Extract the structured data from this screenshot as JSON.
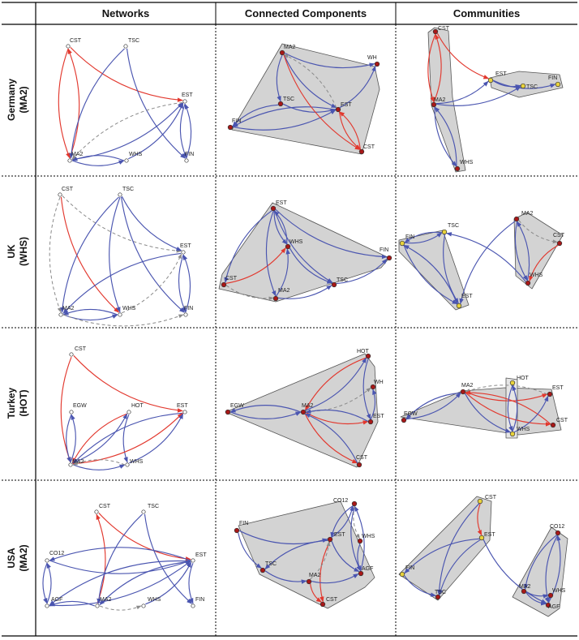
{
  "columns": {
    "networks": "Networks",
    "connected": "Connected Components",
    "communities": "Communities"
  },
  "rows": [
    {
      "country": "Germany",
      "focus": "(MA2)"
    },
    {
      "country": "UK",
      "focus": "(WHS)"
    },
    {
      "country": "Turkey",
      "focus": "(HOT)"
    },
    {
      "country": "USA",
      "focus": "(MA2)"
    }
  ],
  "colors": {
    "edge_blue": "#4a55b0",
    "edge_red": "#e2382e",
    "edge_dashed": "#8a8a8a",
    "hull_fill": "#d3d3d3",
    "node_red": "#a81818",
    "node_yellow": "#e8d23c"
  },
  "graphs": {
    "g_net": {
      "nodes": [
        [
          "CST",
          "CST"
        ],
        [
          "TSC",
          "TSC"
        ],
        [
          "EST",
          "EST"
        ],
        [
          "MA2",
          "MA2"
        ],
        [
          "WHS",
          "WHS"
        ],
        [
          "FIN",
          "FIN"
        ]
      ],
      "edges": [
        [
          "CST",
          "MA2",
          "r"
        ],
        [
          "MA2",
          "CST",
          "r"
        ],
        [
          "CST",
          "EST",
          "r"
        ],
        [
          "TSC",
          "MA2",
          "b"
        ],
        [
          "TSC",
          "FIN",
          "b"
        ],
        [
          "MA2",
          "EST",
          "b"
        ],
        [
          "EST",
          "MA2",
          "d"
        ],
        [
          "MA2",
          "WHS",
          "b"
        ],
        [
          "WHS",
          "MA2",
          "b"
        ],
        [
          "WHS",
          "EST",
          "b"
        ],
        [
          "EST",
          "FIN",
          "b"
        ],
        [
          "FIN",
          "EST",
          "b"
        ]
      ]
    },
    "g_cc": {
      "nodes": [
        [
          "MA2",
          "MA2"
        ],
        [
          "WH",
          "WH"
        ],
        [
          "TSC",
          "TSC"
        ],
        [
          "EST",
          "EST"
        ],
        [
          "FIN",
          "FIN"
        ],
        [
          "CST",
          "CST"
        ]
      ],
      "edges": [
        [
          "MA2",
          "WH",
          "b"
        ],
        [
          "EST",
          "WH",
          "b"
        ],
        [
          "MA2",
          "TSC",
          "b"
        ],
        [
          "MA2",
          "EST",
          "b"
        ],
        [
          "TSC",
          "EST",
          "b"
        ],
        [
          "EST",
          "FIN",
          "b"
        ],
        [
          "FIN",
          "EST",
          "b"
        ],
        [
          "TSC",
          "FIN",
          "b"
        ],
        [
          "MA2",
          "CST",
          "r"
        ],
        [
          "EST",
          "CST",
          "r"
        ],
        [
          "CST",
          "EST",
          "r"
        ],
        [
          "EST",
          "MA2",
          "d"
        ]
      ]
    },
    "g_com": {
      "nodes": [
        [
          "CST",
          "CST"
        ],
        [
          "EST",
          "EST"
        ],
        [
          "FIN",
          "FIN"
        ],
        [
          "TSC",
          "TSC"
        ],
        [
          "MA2",
          "MA2"
        ],
        [
          "WHS",
          "WHS"
        ]
      ],
      "edges": [
        [
          "CST",
          "MA2",
          "r"
        ],
        [
          "MA2",
          "CST",
          "r"
        ],
        [
          "MA2",
          "WHS",
          "b"
        ],
        [
          "WHS",
          "MA2",
          "b"
        ],
        [
          "MA2",
          "EST",
          "b"
        ],
        [
          "MA2",
          "TSC",
          "b"
        ],
        [
          "EST",
          "TSC",
          "b"
        ],
        [
          "EST",
          "FIN",
          "b"
        ],
        [
          "CST",
          "EST",
          "r"
        ]
      ]
    },
    "u_net": {
      "nodes": [
        [
          "CST",
          "CST"
        ],
        [
          "TSC",
          "TSC"
        ],
        [
          "EST",
          "EST"
        ],
        [
          "MA2",
          "MA2"
        ],
        [
          "WHS",
          "WHS"
        ],
        [
          "FIN",
          "FIN"
        ]
      ],
      "edges": [
        [
          "CST",
          "MA2",
          "d"
        ],
        [
          "CST",
          "WHS",
          "r"
        ],
        [
          "CST",
          "EST",
          "d"
        ],
        [
          "TSC",
          "MA2",
          "b"
        ],
        [
          "TSC",
          "WHS",
          "b"
        ],
        [
          "TSC",
          "EST",
          "b"
        ],
        [
          "TSC",
          "FIN",
          "b"
        ],
        [
          "EST",
          "MA2",
          "b"
        ],
        [
          "MA2",
          "WHS",
          "b"
        ],
        [
          "WHS",
          "MA2",
          "b"
        ],
        [
          "WHS",
          "EST",
          "d"
        ],
        [
          "EST",
          "FIN",
          "b"
        ],
        [
          "FIN",
          "EST",
          "b"
        ],
        [
          "MA2",
          "FIN",
          "d"
        ]
      ]
    },
    "u_cc": {
      "nodes": [
        [
          "EST",
          "EST"
        ],
        [
          "WHS",
          "WHS"
        ],
        [
          "FIN",
          "FIN"
        ],
        [
          "CST",
          "CST"
        ],
        [
          "MA2",
          "MA2"
        ],
        [
          "TSC",
          "TSC"
        ]
      ],
      "edges": [
        [
          "EST",
          "FIN",
          "b"
        ],
        [
          "EST",
          "WHS",
          "b"
        ],
        [
          "WHS",
          "EST",
          "b"
        ],
        [
          "EST",
          "TSC",
          "b"
        ],
        [
          "EST",
          "CST",
          "b"
        ],
        [
          "CST",
          "WHS",
          "r"
        ],
        [
          "MA2",
          "WHS",
          "b"
        ],
        [
          "WHS",
          "TSC",
          "b"
        ],
        [
          "TSC",
          "FIN",
          "b"
        ],
        [
          "MA2",
          "TSC",
          "b"
        ],
        [
          "CST",
          "MA2",
          "d"
        ],
        [
          "EST",
          "MA2",
          "b"
        ]
      ]
    },
    "u_com": {
      "nodes": [
        [
          "FIN",
          "FIN"
        ],
        [
          "TSC",
          "TSC"
        ],
        [
          "EST",
          "EST"
        ],
        [
          "MA2",
          "MA2"
        ],
        [
          "CST",
          "CST"
        ],
        [
          "WHS",
          "WHS"
        ]
      ],
      "edges": [
        [
          "FIN",
          "TSC",
          "b"
        ],
        [
          "TSC",
          "FIN",
          "b"
        ],
        [
          "FIN",
          "EST",
          "b"
        ],
        [
          "EST",
          "FIN",
          "b"
        ],
        [
          "TSC",
          "EST",
          "b"
        ],
        [
          "MA2",
          "WHS",
          "b"
        ],
        [
          "WHS",
          "MA2",
          "b"
        ],
        [
          "MA2",
          "CST",
          "d"
        ],
        [
          "CST",
          "WHS",
          "r"
        ],
        [
          "MA2",
          "EST",
          "b"
        ],
        [
          "WHS",
          "TSC",
          "b"
        ]
      ]
    },
    "t_net": {
      "nodes": [
        [
          "CST",
          "CST"
        ],
        [
          "EGW",
          "EGW"
        ],
        [
          "HOT",
          "HOT"
        ],
        [
          "EST",
          "EST"
        ],
        [
          "MA2",
          "MA2"
        ],
        [
          "WHS",
          "WHS"
        ]
      ],
      "edges": [
        [
          "CST",
          "MA2",
          "r"
        ],
        [
          "CST",
          "EST",
          "r"
        ],
        [
          "MA2",
          "EGW",
          "b"
        ],
        [
          "EGW",
          "MA2",
          "b"
        ],
        [
          "HOT",
          "MA2",
          "r"
        ],
        [
          "HOT",
          "WHS",
          "b"
        ],
        [
          "MA2",
          "HOT",
          "b"
        ],
        [
          "EST",
          "MA2",
          "b"
        ],
        [
          "MA2",
          "EST",
          "r"
        ],
        [
          "WHS",
          "EST",
          "b"
        ],
        [
          "MA2",
          "WHS",
          "b"
        ],
        [
          "WHS",
          "MA2",
          "d"
        ]
      ]
    },
    "t_cc": {
      "nodes": [
        [
          "HOT",
          "HOT"
        ],
        [
          "WH",
          "WH"
        ],
        [
          "EGW",
          "EGW"
        ],
        [
          "MA2",
          "MA2"
        ],
        [
          "EST",
          "EST"
        ],
        [
          "CST",
          "CST"
        ]
      ],
      "edges": [
        [
          "MA2",
          "EGW",
          "b"
        ],
        [
          "EGW",
          "MA2",
          "b"
        ],
        [
          "HOT",
          "MA2",
          "r"
        ],
        [
          "MA2",
          "HOT",
          "b"
        ],
        [
          "MA2",
          "WH",
          "d"
        ],
        [
          "EST",
          "WH",
          "b"
        ],
        [
          "MA2",
          "EST",
          "r"
        ],
        [
          "EST",
          "MA2",
          "b"
        ],
        [
          "MA2",
          "CST",
          "r"
        ],
        [
          "CST",
          "MA2",
          "b"
        ],
        [
          "HOT",
          "EST",
          "b"
        ]
      ]
    },
    "t_com": {
      "nodes": [
        [
          "MA2",
          "MA2"
        ],
        [
          "HOT",
          "HOT"
        ],
        [
          "EST",
          "EST"
        ],
        [
          "EGW",
          "EGW"
        ],
        [
          "WHS",
          "WHS"
        ],
        [
          "CST",
          "CST"
        ]
      ],
      "edges": [
        [
          "MA2",
          "EGW",
          "b"
        ],
        [
          "EGW",
          "MA2",
          "b"
        ],
        [
          "MA2",
          "EST",
          "r"
        ],
        [
          "EST",
          "MA2",
          "d"
        ],
        [
          "MA2",
          "CST",
          "r"
        ],
        [
          "CST",
          "MA2",
          "r"
        ],
        [
          "HOT",
          "WHS",
          "b"
        ],
        [
          "WHS",
          "HOT",
          "b"
        ],
        [
          "MA2",
          "WHS",
          "b"
        ],
        [
          "WHS",
          "EST",
          "b"
        ]
      ]
    },
    "s_net": {
      "nodes": [
        [
          "CST",
          "CST"
        ],
        [
          "TSC",
          "TSC"
        ],
        [
          "CO12",
          "CO12"
        ],
        [
          "EST",
          "EST"
        ],
        [
          "AGF",
          "AGF"
        ],
        [
          "MA2",
          "MA2"
        ],
        [
          "WHS",
          "WHS"
        ],
        [
          "FIN",
          "FIN"
        ]
      ],
      "edges": [
        [
          "MA2",
          "CST",
          "r"
        ],
        [
          "CST",
          "EST",
          "r"
        ],
        [
          "TSC",
          "MA2",
          "b"
        ],
        [
          "TSC",
          "FIN",
          "b"
        ],
        [
          "CO12",
          "EST",
          "b"
        ],
        [
          "EST",
          "AGF",
          "b"
        ],
        [
          "EST",
          "MA2",
          "b"
        ],
        [
          "EST",
          "CO12",
          "b"
        ],
        [
          "MA2",
          "AGF",
          "b"
        ],
        [
          "AGF",
          "CO12",
          "b"
        ],
        [
          "CO12",
          "AGF",
          "b"
        ],
        [
          "WHS",
          "EST",
          "b"
        ],
        [
          "MA2",
          "WHS",
          "d"
        ],
        [
          "EST",
          "FIN",
          "b"
        ],
        [
          "AGF",
          "EST",
          "b"
        ]
      ]
    },
    "s_cc": {
      "nodes": [
        [
          "CO12",
          "CO12"
        ],
        [
          "FIN",
          "FIN"
        ],
        [
          "EST",
          "EST"
        ],
        [
          "WHS",
          "WHS"
        ],
        [
          "TSC",
          "TSC"
        ],
        [
          "MA2",
          "MA2"
        ],
        [
          "AGF",
          "AGF"
        ],
        [
          "CST",
          "CST"
        ]
      ],
      "edges": [
        [
          "FIN",
          "EST",
          "b"
        ],
        [
          "EST",
          "TSC",
          "b"
        ],
        [
          "FIN",
          "TSC",
          "b"
        ],
        [
          "CO12",
          "EST",
          "b"
        ],
        [
          "EST",
          "CO12",
          "b"
        ],
        [
          "CO12",
          "AGF",
          "b"
        ],
        [
          "AGF",
          "CO12",
          "b"
        ],
        [
          "EST",
          "AGF",
          "b"
        ],
        [
          "WHS",
          "AGF",
          "b"
        ],
        [
          "MA2",
          "CST",
          "r"
        ],
        [
          "EST",
          "CST",
          "r"
        ],
        [
          "TSC",
          "MA2",
          "b"
        ],
        [
          "MA2",
          "AGF",
          "b"
        ],
        [
          "CO12",
          "WHS",
          "d"
        ],
        [
          "MA2",
          "EST",
          "d"
        ]
      ]
    },
    "s_com": {
      "nodes": [
        [
          "CST",
          "CST"
        ],
        [
          "EST",
          "EST"
        ],
        [
          "FIN",
          "FIN"
        ],
        [
          "TSC",
          "TSC"
        ],
        [
          "CO12",
          "CO12"
        ],
        [
          "MA2",
          "MA2"
        ],
        [
          "WHS",
          "WHS"
        ],
        [
          "AGF",
          "AGF"
        ]
      ],
      "edges": [
        [
          "CST",
          "EST",
          "r"
        ],
        [
          "EST",
          "FIN",
          "b"
        ],
        [
          "EST",
          "TSC",
          "b"
        ],
        [
          "FIN",
          "TSC",
          "b"
        ],
        [
          "CST",
          "TSC",
          "b"
        ],
        [
          "CO12",
          "AGF",
          "b"
        ],
        [
          "AGF",
          "CO12",
          "b"
        ],
        [
          "MA2",
          "AGF",
          "b"
        ],
        [
          "WHS",
          "AGF",
          "b"
        ],
        [
          "CO12",
          "MA2",
          "b"
        ],
        [
          "EST",
          "AGF",
          "b"
        ],
        [
          "MA2",
          "WHS",
          "b"
        ]
      ]
    }
  }
}
